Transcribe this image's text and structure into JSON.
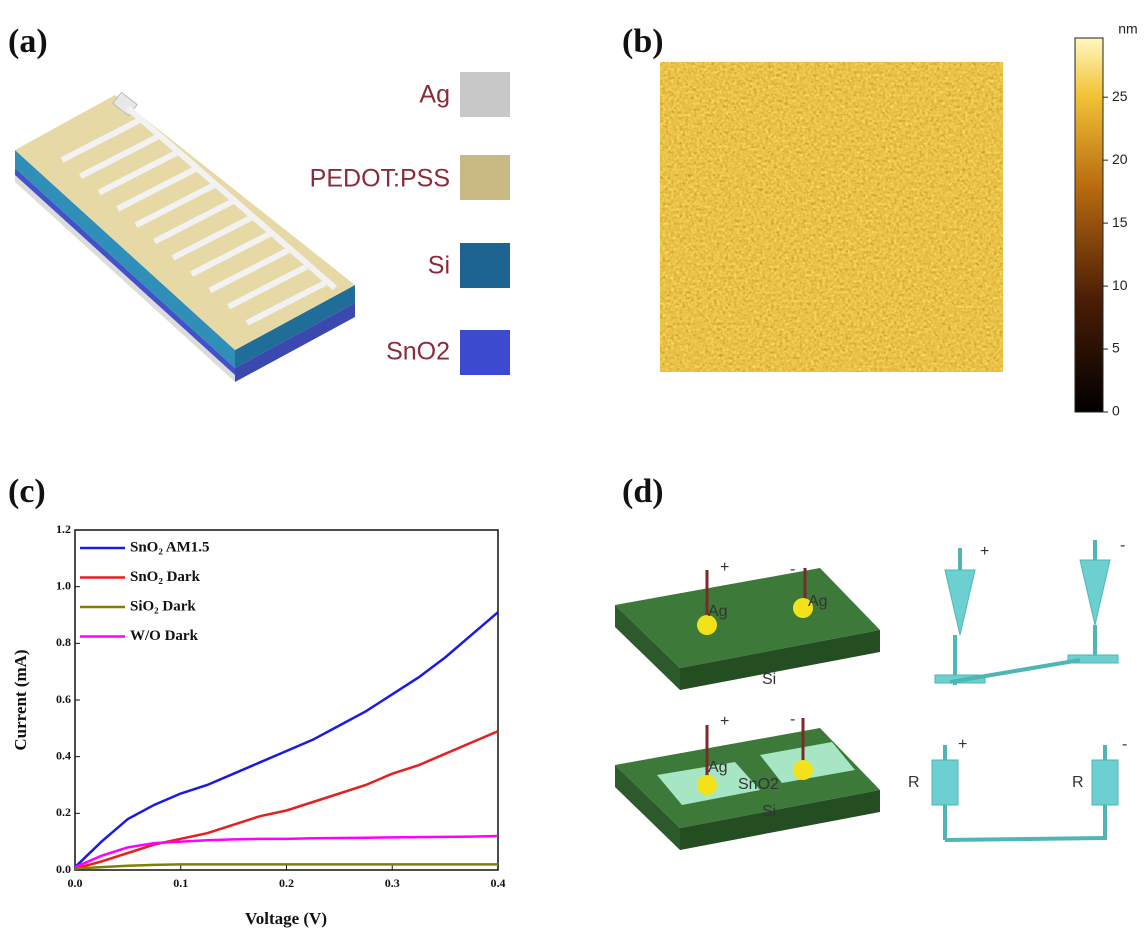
{
  "panels": {
    "a": {
      "label": "(a)",
      "materials": [
        "Ag",
        "PEDOT:PSS",
        "Si",
        "SnO2"
      ]
    },
    "b": {
      "label": "(b)",
      "colorbar": {
        "unit": "nm",
        "lim": [
          0,
          29.7
        ],
        "ticks": [
          0,
          5,
          10,
          15,
          20,
          25
        ]
      }
    },
    "c": {
      "label": "(c)"
    },
    "d": {
      "label": "(d)",
      "texts": [
        "+",
        "-",
        "Ag",
        "Ag",
        "Si",
        "+",
        "-",
        "Ag",
        "SnO2",
        "Si",
        "+",
        "-",
        "+",
        "-",
        "R",
        "R"
      ]
    }
  },
  "chart_data": {
    "type": "line",
    "x_label": "Voltage (V)",
    "y_label": "Current (mA)",
    "x": [
      0,
      0.025,
      0.05,
      0.075,
      0.1,
      0.125,
      0.15,
      0.175,
      0.2,
      0.225,
      0.25,
      0.275,
      0.3,
      0.325,
      0.35,
      0.375,
      0.4
    ],
    "series": [
      {
        "name": "SnO₂ AM1.5",
        "color": "#1a1ae6",
        "values": [
          0.01,
          0.1,
          0.18,
          0.23,
          0.27,
          0.3,
          0.34,
          0.38,
          0.42,
          0.46,
          0.51,
          0.56,
          0.62,
          0.68,
          0.75,
          0.83,
          0.91
        ]
      },
      {
        "name": "SnO₂ Dark",
        "color": "#e62020",
        "values": [
          0.005,
          0.03,
          0.06,
          0.09,
          0.11,
          0.13,
          0.16,
          0.19,
          0.21,
          0.24,
          0.27,
          0.3,
          0.34,
          0.37,
          0.41,
          0.45,
          0.49
        ]
      },
      {
        "name": "SiO₂ Dark",
        "color": "#808000",
        "values": [
          0.005,
          0.01,
          0.015,
          0.018,
          0.02,
          0.02,
          0.02,
          0.02,
          0.02,
          0.02,
          0.02,
          0.02,
          0.02,
          0.02,
          0.02,
          0.02,
          0.02
        ]
      },
      {
        "name": "W/O Dark",
        "color": "#ff00ff",
        "values": [
          0.01,
          0.05,
          0.08,
          0.095,
          0.1,
          0.105,
          0.108,
          0.11,
          0.11,
          0.112,
          0.113,
          0.114,
          0.115,
          0.116,
          0.117,
          0.118,
          0.12
        ]
      }
    ],
    "xlim": [
      0,
      0.4
    ],
    "ylim": [
      0,
      1.2
    ],
    "xticks": [
      {
        "value": 0,
        "label": "0.0"
      },
      0.1,
      0.2,
      0.3,
      0.4
    ],
    "yticks": [
      {
        "value": 0,
        "label": "0.0"
      },
      0.2,
      0.4,
      0.6,
      0.8,
      {
        "value": 1,
        "label": "1.0"
      },
      1.2
    ],
    "legend": "upper left"
  }
}
